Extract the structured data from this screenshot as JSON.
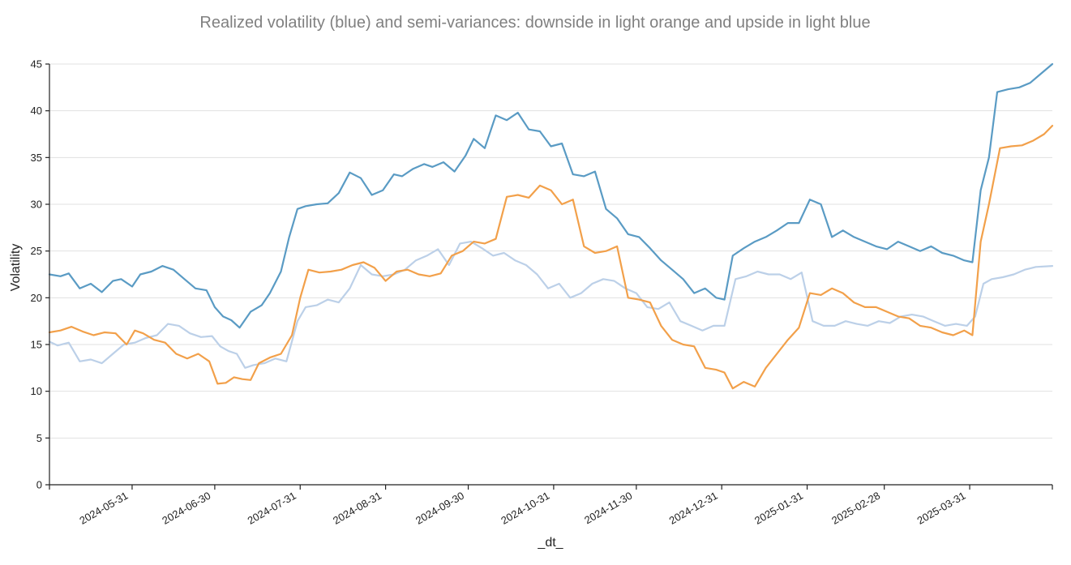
{
  "chart_data": {
    "type": "line",
    "title": "Realized volatility (blue) and semi-variances: downside in light orange and upside in light blue",
    "xlabel": "_dt_",
    "ylabel": "Volatility",
    "ylim": [
      0,
      45
    ],
    "yticks": [
      0,
      5,
      10,
      15,
      20,
      25,
      30,
      35,
      40,
      45
    ],
    "xlim": [
      "2024-05-01",
      "2025-04-30"
    ],
    "xticks": [
      "2024-05-31",
      "2024-06-30",
      "2024-07-31",
      "2024-08-31",
      "2024-09-30",
      "2024-10-31",
      "2024-11-30",
      "2024-12-31",
      "2025-01-31",
      "2025-02-28",
      "2025-03-31"
    ],
    "grid": "horizontal",
    "legend": "none",
    "colors": {
      "realized": "#5a9bc4",
      "downside": "#f2a04a",
      "upside": "#bcd0e8"
    },
    "series": [
      {
        "key": "realized",
        "x": [
          "2024-05-01",
          "2024-05-05",
          "2024-05-08",
          "2024-05-12",
          "2024-05-16",
          "2024-05-20",
          "2024-05-24",
          "2024-05-27",
          "2024-05-31",
          "2024-06-03",
          "2024-06-07",
          "2024-06-11",
          "2024-06-15",
          "2024-06-19",
          "2024-06-23",
          "2024-06-27",
          "2024-06-30",
          "2024-07-03",
          "2024-07-06",
          "2024-07-09",
          "2024-07-13",
          "2024-07-17",
          "2024-07-20",
          "2024-07-24",
          "2024-07-27",
          "2024-07-30",
          "2024-08-02",
          "2024-08-06",
          "2024-08-10",
          "2024-08-14",
          "2024-08-18",
          "2024-08-22",
          "2024-08-26",
          "2024-08-30",
          "2024-09-03",
          "2024-09-06",
          "2024-09-10",
          "2024-09-14",
          "2024-09-17",
          "2024-09-21",
          "2024-09-25",
          "2024-09-29",
          "2024-10-02",
          "2024-10-06",
          "2024-10-10",
          "2024-10-14",
          "2024-10-18",
          "2024-10-22",
          "2024-10-26",
          "2024-10-30",
          "2024-11-03",
          "2024-11-07",
          "2024-11-11",
          "2024-11-15",
          "2024-11-19",
          "2024-11-23",
          "2024-11-27",
          "2024-12-01",
          "2024-12-05",
          "2024-12-09",
          "2024-12-13",
          "2024-12-17",
          "2024-12-21",
          "2024-12-25",
          "2024-12-29",
          "2025-01-01",
          "2025-01-04",
          "2025-01-08",
          "2025-01-12",
          "2025-01-16",
          "2025-01-20",
          "2025-01-24",
          "2025-01-28",
          "2025-02-01",
          "2025-02-05",
          "2025-02-09",
          "2025-02-13",
          "2025-02-17",
          "2025-02-21",
          "2025-02-25",
          "2025-03-01",
          "2025-03-05",
          "2025-03-09",
          "2025-03-13",
          "2025-03-17",
          "2025-03-21",
          "2025-03-25",
          "2025-03-29",
          "2025-04-01",
          "2025-04-04",
          "2025-04-07",
          "2025-04-10",
          "2025-04-14",
          "2025-04-18",
          "2025-04-22",
          "2025-04-26",
          "2025-04-30"
        ],
        "y": [
          22.5,
          22.3,
          22.6,
          21.0,
          21.5,
          20.6,
          21.8,
          22.0,
          21.2,
          22.5,
          22.8,
          23.4,
          23.0,
          22.0,
          21.0,
          20.8,
          19.0,
          18.0,
          17.6,
          16.8,
          18.5,
          19.2,
          20.5,
          22.8,
          26.5,
          29.5,
          29.8,
          30.0,
          30.1,
          31.2,
          33.4,
          32.8,
          31.0,
          31.5,
          33.2,
          33.0,
          33.8,
          34.3,
          34.0,
          34.5,
          33.5,
          35.2,
          37.0,
          36.0,
          39.5,
          39.0,
          39.8,
          38.0,
          37.8,
          36.2,
          36.5,
          33.2,
          33.0,
          33.5,
          29.5,
          28.5,
          26.8,
          26.5,
          25.3,
          24.0,
          23.0,
          22.0,
          20.5,
          21.0,
          20.0,
          19.8,
          24.5,
          25.3,
          26.0,
          26.5,
          27.2,
          28.0,
          28.0,
          30.5,
          30.0,
          26.5,
          27.2,
          26.5,
          26.0,
          25.5,
          25.2,
          26.0,
          25.5,
          25.0,
          25.5,
          24.8,
          24.5,
          24.0,
          23.8,
          31.5,
          35.0,
          42.0,
          42.3,
          42.5,
          43.0,
          44.0,
          45.0
        ]
      },
      {
        "key": "downside",
        "x": [
          "2024-05-01",
          "2024-05-05",
          "2024-05-09",
          "2024-05-13",
          "2024-05-17",
          "2024-05-21",
          "2024-05-25",
          "2024-05-29",
          "2024-06-01",
          "2024-06-04",
          "2024-06-08",
          "2024-06-12",
          "2024-06-16",
          "2024-06-20",
          "2024-06-24",
          "2024-06-28",
          "2024-07-01",
          "2024-07-04",
          "2024-07-07",
          "2024-07-10",
          "2024-07-13",
          "2024-07-16",
          "2024-07-20",
          "2024-07-24",
          "2024-07-28",
          "2024-07-31",
          "2024-08-03",
          "2024-08-07",
          "2024-08-11",
          "2024-08-15",
          "2024-08-19",
          "2024-08-23",
          "2024-08-27",
          "2024-08-31",
          "2024-09-04",
          "2024-09-08",
          "2024-09-12",
          "2024-09-16",
          "2024-09-20",
          "2024-09-24",
          "2024-09-28",
          "2024-10-02",
          "2024-10-06",
          "2024-10-10",
          "2024-10-14",
          "2024-10-18",
          "2024-10-22",
          "2024-10-26",
          "2024-10-30",
          "2024-11-03",
          "2024-11-07",
          "2024-11-11",
          "2024-11-15",
          "2024-11-19",
          "2024-11-23",
          "2024-11-27",
          "2024-12-01",
          "2024-12-05",
          "2024-12-09",
          "2024-12-13",
          "2024-12-17",
          "2024-12-21",
          "2024-12-25",
          "2024-12-29",
          "2025-01-01",
          "2025-01-04",
          "2025-01-08",
          "2025-01-12",
          "2025-01-16",
          "2025-01-20",
          "2025-01-24",
          "2025-01-28",
          "2025-02-01",
          "2025-02-05",
          "2025-02-09",
          "2025-02-13",
          "2025-02-17",
          "2025-02-21",
          "2025-02-25",
          "2025-03-01",
          "2025-03-05",
          "2025-03-09",
          "2025-03-13",
          "2025-03-17",
          "2025-03-21",
          "2025-03-25",
          "2025-03-29",
          "2025-04-01",
          "2025-04-04",
          "2025-04-07",
          "2025-04-11",
          "2025-04-15",
          "2025-04-19",
          "2025-04-23",
          "2025-04-27",
          "2025-04-30"
        ],
        "y": [
          16.3,
          16.5,
          16.9,
          16.4,
          16.0,
          16.3,
          16.2,
          15.0,
          16.5,
          16.2,
          15.5,
          15.2,
          14.0,
          13.5,
          14.0,
          13.2,
          10.8,
          10.9,
          11.5,
          11.3,
          11.2,
          13.0,
          13.6,
          14.0,
          16.0,
          20.0,
          23.0,
          22.7,
          22.8,
          23.0,
          23.5,
          23.8,
          23.2,
          21.8,
          22.8,
          23.0,
          22.5,
          22.3,
          22.6,
          24.5,
          25.0,
          26.0,
          25.8,
          26.3,
          30.8,
          31.0,
          30.7,
          32.0,
          31.5,
          30.0,
          30.5,
          25.5,
          24.8,
          25.0,
          25.5,
          20.0,
          19.8,
          19.5,
          17.0,
          15.5,
          15.0,
          14.8,
          12.5,
          12.3,
          12.0,
          10.3,
          11.0,
          10.5,
          12.5,
          14.0,
          15.5,
          16.8,
          20.5,
          20.3,
          21.0,
          20.5,
          19.5,
          19.0,
          19.0,
          18.5,
          18.0,
          17.8,
          17.0,
          16.8,
          16.3,
          16.0,
          16.5,
          16.0,
          26.0,
          30.0,
          36.0,
          36.2,
          36.3,
          36.8,
          37.5,
          38.4
        ]
      },
      {
        "key": "upside",
        "x": [
          "2024-05-01",
          "2024-05-04",
          "2024-05-08",
          "2024-05-12",
          "2024-05-16",
          "2024-05-20",
          "2024-05-24",
          "2024-05-28",
          "2024-06-01",
          "2024-06-05",
          "2024-06-09",
          "2024-06-13",
          "2024-06-17",
          "2024-06-21",
          "2024-06-25",
          "2024-06-29",
          "2024-07-02",
          "2024-07-05",
          "2024-07-08",
          "2024-07-11",
          "2024-07-14",
          "2024-07-18",
          "2024-07-22",
          "2024-07-26",
          "2024-07-30",
          "2024-08-02",
          "2024-08-06",
          "2024-08-10",
          "2024-08-14",
          "2024-08-18",
          "2024-08-22",
          "2024-08-26",
          "2024-08-30",
          "2024-09-03",
          "2024-09-07",
          "2024-09-11",
          "2024-09-15",
          "2024-09-19",
          "2024-09-23",
          "2024-09-27",
          "2024-10-01",
          "2024-10-05",
          "2024-10-09",
          "2024-10-13",
          "2024-10-17",
          "2024-10-21",
          "2024-10-25",
          "2024-10-29",
          "2024-11-02",
          "2024-11-06",
          "2024-11-10",
          "2024-11-14",
          "2024-11-18",
          "2024-11-22",
          "2024-11-26",
          "2024-11-30",
          "2024-12-04",
          "2024-12-08",
          "2024-12-12",
          "2024-12-16",
          "2024-12-20",
          "2024-12-24",
          "2024-12-28",
          "2025-01-01",
          "2025-01-05",
          "2025-01-09",
          "2025-01-13",
          "2025-01-17",
          "2025-01-21",
          "2025-01-25",
          "2025-01-29",
          "2025-02-02",
          "2025-02-06",
          "2025-02-10",
          "2025-02-14",
          "2025-02-18",
          "2025-02-22",
          "2025-02-26",
          "2025-03-02",
          "2025-03-06",
          "2025-03-10",
          "2025-03-14",
          "2025-03-18",
          "2025-03-22",
          "2025-03-26",
          "2025-03-30",
          "2025-04-02",
          "2025-04-05",
          "2025-04-08",
          "2025-04-12",
          "2025-04-16",
          "2025-04-20",
          "2025-04-24",
          "2025-04-30"
        ],
        "y": [
          15.3,
          14.9,
          15.2,
          13.2,
          13.4,
          13.0,
          14.0,
          15.0,
          15.2,
          15.7,
          16.0,
          17.2,
          17.0,
          16.2,
          15.8,
          15.9,
          14.8,
          14.3,
          14.0,
          12.5,
          12.8,
          13.0,
          13.5,
          13.2,
          17.5,
          19.0,
          19.2,
          19.8,
          19.5,
          21.0,
          23.5,
          22.5,
          22.3,
          22.5,
          23.0,
          24.0,
          24.5,
          25.2,
          23.5,
          25.8,
          26.0,
          25.3,
          24.5,
          24.8,
          24.0,
          23.5,
          22.5,
          21.0,
          21.5,
          20.0,
          20.5,
          21.5,
          22.0,
          21.8,
          21.0,
          20.5,
          19.0,
          18.8,
          19.5,
          17.5,
          17.0,
          16.5,
          17.0,
          17.0,
          22.0,
          22.3,
          22.8,
          22.5,
          22.5,
          22.0,
          22.7,
          17.5,
          17.0,
          17.0,
          17.5,
          17.2,
          17.0,
          17.5,
          17.3,
          18.0,
          18.2,
          18.0,
          17.5,
          17.0,
          17.2,
          17.0,
          18.0,
          21.5,
          22.0,
          22.2,
          22.5,
          23.0,
          23.3,
          23.4
        ]
      }
    ]
  }
}
